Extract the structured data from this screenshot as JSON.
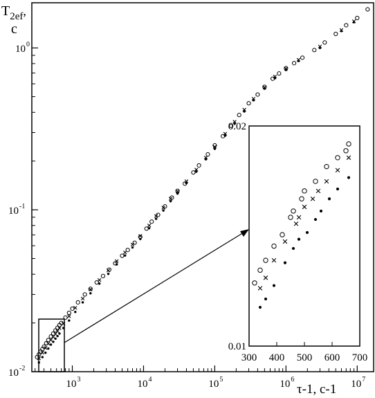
{
  "chart_data": {
    "type": "scatter",
    "title": "",
    "ylabel_line1": "T",
    "ylabel_sub": "2ef",
    "ylabel_comma": ",",
    "ylabel_line2": "c",
    "xlabel": "τ-1, c-1",
    "x_scale": "log",
    "y_scale": "log",
    "xlim": [
      270,
      17000000
    ],
    "ylim": [
      0.01,
      1.9
    ],
    "x_tick_labels": [
      "10",
      "10",
      "10",
      "10",
      "10"
    ],
    "x_tick_exponents": [
      "3",
      "4",
      "5",
      "6",
      "7"
    ],
    "y_tick_labels": [
      "10",
      "10",
      "10"
    ],
    "y_tick_exponents": [
      "-2",
      "-1",
      "0"
    ],
    "grid": false,
    "series": [
      {
        "marker": "open-circle",
        "points": [
          [
            320,
            0.0123
          ],
          [
            340,
            0.0128
          ],
          [
            360,
            0.0133
          ],
          [
            380,
            0.0138
          ],
          [
            400,
            0.0143
          ],
          [
            430,
            0.015
          ],
          [
            460,
            0.0157
          ],
          [
            500,
            0.0165
          ],
          [
            540,
            0.0172
          ],
          [
            580,
            0.018
          ],
          [
            620,
            0.0187
          ],
          [
            660,
            0.0194
          ],
          [
            700,
            0.02
          ],
          [
            800,
            0.0216
          ],
          [
            900,
            0.0231
          ],
          [
            1000,
            0.0245
          ],
          [
            1200,
            0.0268
          ],
          [
            1500,
            0.03
          ],
          [
            1800,
            0.0325
          ],
          [
            2200,
            0.0356
          ],
          [
            2700,
            0.039
          ],
          [
            3300,
            0.0427
          ],
          [
            4000,
            0.0467
          ],
          [
            5000,
            0.052
          ],
          [
            6000,
            0.0565
          ],
          [
            7500,
            0.0626
          ],
          [
            9000,
            0.068
          ],
          [
            11000,
            0.0765
          ],
          [
            13000,
            0.0845
          ],
          [
            16000,
            0.093
          ],
          [
            20000,
            0.105
          ],
          [
            25000,
            0.119
          ],
          [
            30000,
            0.131
          ],
          [
            38000,
            0.145
          ],
          [
            50000,
            0.17
          ],
          [
            60000,
            0.188
          ],
          [
            80000,
            0.22
          ],
          [
            100000,
            0.25
          ],
          [
            130000,
            0.285
          ],
          [
            170000,
            0.33
          ],
          [
            220000,
            0.385
          ],
          [
            300000,
            0.455
          ],
          [
            400000,
            0.515
          ],
          [
            500000,
            0.575
          ],
          [
            650000,
            0.645
          ],
          [
            800000,
            0.695
          ],
          [
            1000000,
            0.75
          ],
          [
            1300000,
            0.805
          ],
          [
            1700000,
            0.87
          ],
          [
            2500000,
            0.97
          ],
          [
            3500000,
            1.08
          ],
          [
            5000000,
            1.22
          ],
          [
            7000000,
            1.38
          ],
          [
            10000000,
            1.53
          ],
          [
            14000000,
            1.73
          ]
        ]
      },
      {
        "marker": "cross",
        "points": [
          [
            340,
            0.0121
          ],
          [
            380,
            0.0131
          ],
          [
            420,
            0.014
          ],
          [
            460,
            0.0149
          ],
          [
            500,
            0.0157
          ],
          [
            540,
            0.0164
          ],
          [
            580,
            0.0171
          ],
          [
            620,
            0.0178
          ],
          [
            660,
            0.0186
          ],
          [
            750,
            0.0198
          ],
          [
            900,
            0.022
          ],
          [
            1100,
            0.0248
          ],
          [
            1400,
            0.0283
          ],
          [
            1800,
            0.0322
          ],
          [
            2400,
            0.0368
          ],
          [
            3200,
            0.0422
          ],
          [
            4200,
            0.0482
          ],
          [
            5500,
            0.0545
          ],
          [
            7000,
            0.061
          ],
          [
            9000,
            0.069
          ],
          [
            12000,
            0.08
          ],
          [
            15000,
            0.0915
          ],
          [
            19000,
            0.103
          ],
          [
            24000,
            0.117
          ],
          [
            30000,
            0.13
          ],
          [
            40000,
            0.15
          ],
          [
            55000,
            0.177
          ],
          [
            75000,
            0.21
          ],
          [
            100000,
            0.245
          ],
          [
            140000,
            0.295
          ],
          [
            190000,
            0.35
          ],
          [
            260000,
            0.415
          ],
          [
            350000,
            0.485
          ],
          [
            500000,
            0.57
          ],
          [
            700000,
            0.665
          ],
          [
            1000000,
            0.745
          ],
          [
            1500000,
            0.845
          ],
          [
            3000000,
            1.02
          ],
          [
            6000000,
            1.29
          ],
          [
            9000000,
            1.46
          ]
        ]
      },
      {
        "marker": "dot",
        "points": [
          [
            340,
            0.0114
          ],
          [
            380,
            0.0123
          ],
          [
            420,
            0.0131
          ],
          [
            460,
            0.0139
          ],
          [
            500,
            0.0147
          ],
          [
            540,
            0.0153
          ],
          [
            580,
            0.016
          ],
          [
            620,
            0.0166
          ],
          [
            660,
            0.0172
          ],
          [
            750,
            0.0186
          ],
          [
            900,
            0.0207
          ],
          [
            1100,
            0.0234
          ],
          [
            1400,
            0.0268
          ],
          [
            1800,
            0.0305
          ],
          [
            2400,
            0.035
          ],
          [
            3200,
            0.0402
          ],
          [
            4200,
            0.046
          ],
          [
            5500,
            0.0522
          ],
          [
            7000,
            0.0585
          ],
          [
            9000,
            0.066
          ],
          [
            12000,
            0.077
          ],
          [
            15000,
            0.088
          ],
          [
            19000,
            0.099
          ],
          [
            24000,
            0.113
          ],
          [
            30000,
            0.126
          ],
          [
            40000,
            0.146
          ],
          [
            55000,
            0.172
          ],
          [
            75000,
            0.205
          ],
          [
            100000,
            0.238
          ],
          [
            140000,
            0.287
          ],
          [
            190000,
            0.34
          ],
          [
            260000,
            0.405
          ],
          [
            350000,
            0.475
          ],
          [
            500000,
            0.56
          ],
          [
            700000,
            0.65
          ],
          [
            1000000,
            0.73
          ],
          [
            1500000,
            0.83
          ],
          [
            3000000,
            1.0
          ],
          [
            6000000,
            1.27
          ],
          [
            9000000,
            1.44
          ]
        ]
      }
    ],
    "inset": {
      "type": "scatter",
      "xlim": [
        300,
        700
      ],
      "ylim": [
        0.01,
        0.02
      ],
      "x_tick_labels": [
        "300",
        "400",
        "500",
        "600",
        "700"
      ],
      "y_tick_labels": [
        "0.01",
        "0.02"
      ],
      "series": [
        {
          "marker": "open-circle",
          "points": [
            [
              320,
              0.0122
            ],
            [
              340,
              0.0127
            ],
            [
              360,
              0.0131
            ],
            [
              390,
              0.0137
            ],
            [
              420,
              0.0142
            ],
            [
              450,
              0.015
            ],
            [
              460,
              0.0153
            ],
            [
              490,
              0.0159
            ],
            [
              500,
              0.0163
            ],
            [
              540,
              0.0168
            ],
            [
              580,
              0.0176
            ],
            [
              620,
              0.0181
            ],
            [
              650,
              0.0185
            ],
            [
              660,
              0.0189
            ]
          ]
        },
        {
          "marker": "cross",
          "points": [
            [
              340,
              0.012
            ],
            [
              360,
              0.0124
            ],
            [
              390,
              0.0131
            ],
            [
              430,
              0.0139
            ],
            [
              470,
              0.0147
            ],
            [
              480,
              0.015
            ],
            [
              500,
              0.0155
            ],
            [
              530,
              0.0159
            ],
            [
              550,
              0.0163
            ],
            [
              580,
              0.0168
            ],
            [
              620,
              0.0174
            ],
            [
              660,
              0.0181
            ]
          ]
        },
        {
          "marker": "dot",
          "points": [
            [
              340,
              0.0113
            ],
            [
              360,
              0.0116
            ],
            [
              390,
              0.0121
            ],
            [
              430,
              0.013
            ],
            [
              460,
              0.0136
            ],
            [
              480,
              0.014
            ],
            [
              510,
              0.0143
            ],
            [
              540,
              0.0149
            ],
            [
              560,
              0.0153
            ],
            [
              590,
              0.0159
            ],
            [
              620,
              0.0164
            ],
            [
              660,
              0.017
            ]
          ]
        }
      ]
    }
  }
}
